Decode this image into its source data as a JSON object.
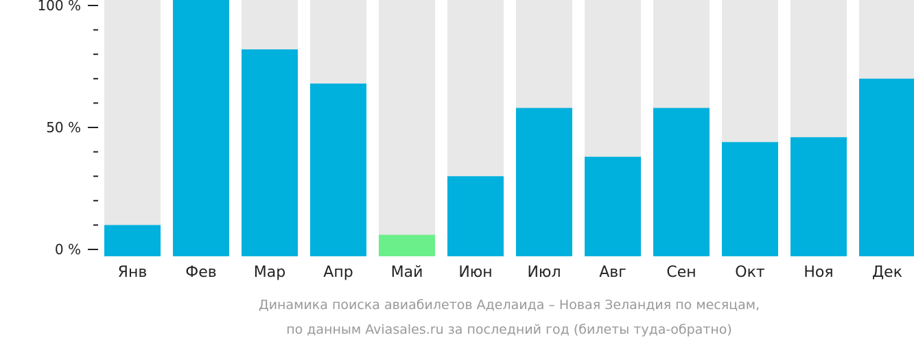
{
  "chart_data": {
    "type": "bar",
    "categories": [
      "Янв",
      "Фев",
      "Мар",
      "Апр",
      "Май",
      "Июн",
      "Июл",
      "Авг",
      "Сен",
      "Окт",
      "Ноя",
      "Дек"
    ],
    "values": [
      10,
      100,
      82,
      68,
      6,
      30,
      58,
      38,
      58,
      44,
      46,
      70
    ],
    "ylim": [
      0,
      100
    ],
    "yticks": [
      {
        "value": 0,
        "label": "0 %"
      },
      {
        "value": 50,
        "label": "50 %"
      },
      {
        "value": 100,
        "label": "100 %"
      }
    ],
    "minor_tick_step": 10,
    "highlight_index": 4,
    "colors": {
      "bar": "#00b0dd",
      "highlight": "#6bef8a",
      "background_bar": "#e8e8e8",
      "axis": "#222222",
      "caption": "#999999"
    },
    "caption": [
      "Динамика поиска авиабилетов Аделаида – Новая Зеландия по месяцам,",
      "по данным Aviasales.ru за последний год (билеты туда-обратно)"
    ],
    "grid": false,
    "legend": "none"
  }
}
